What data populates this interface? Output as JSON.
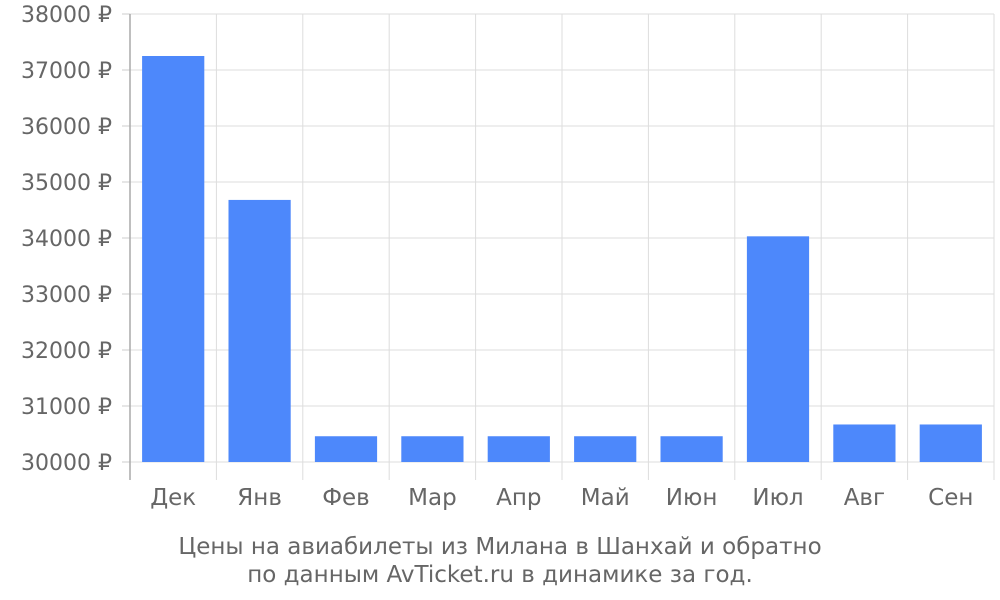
{
  "chart_data": {
    "type": "bar",
    "categories": [
      "Дек",
      "Янв",
      "Фев",
      "Мар",
      "Апр",
      "Май",
      "Июн",
      "Июл",
      "Авг",
      "Сен"
    ],
    "values": [
      37250,
      34680,
      30460,
      30460,
      30460,
      30460,
      30460,
      34030,
      30670,
      30670
    ],
    "ylim": [
      30000,
      38000
    ],
    "yticks": [
      30000,
      31000,
      32000,
      33000,
      34000,
      35000,
      36000,
      37000,
      38000
    ],
    "ytick_suffix": " ₽",
    "grid": true,
    "bar_color": "#4d88fb",
    "caption_line1": "Цены на авиабилеты из Милана в Шанхай и обратно",
    "caption_line2": "по данным AvTicket.ru в динамике за год."
  }
}
